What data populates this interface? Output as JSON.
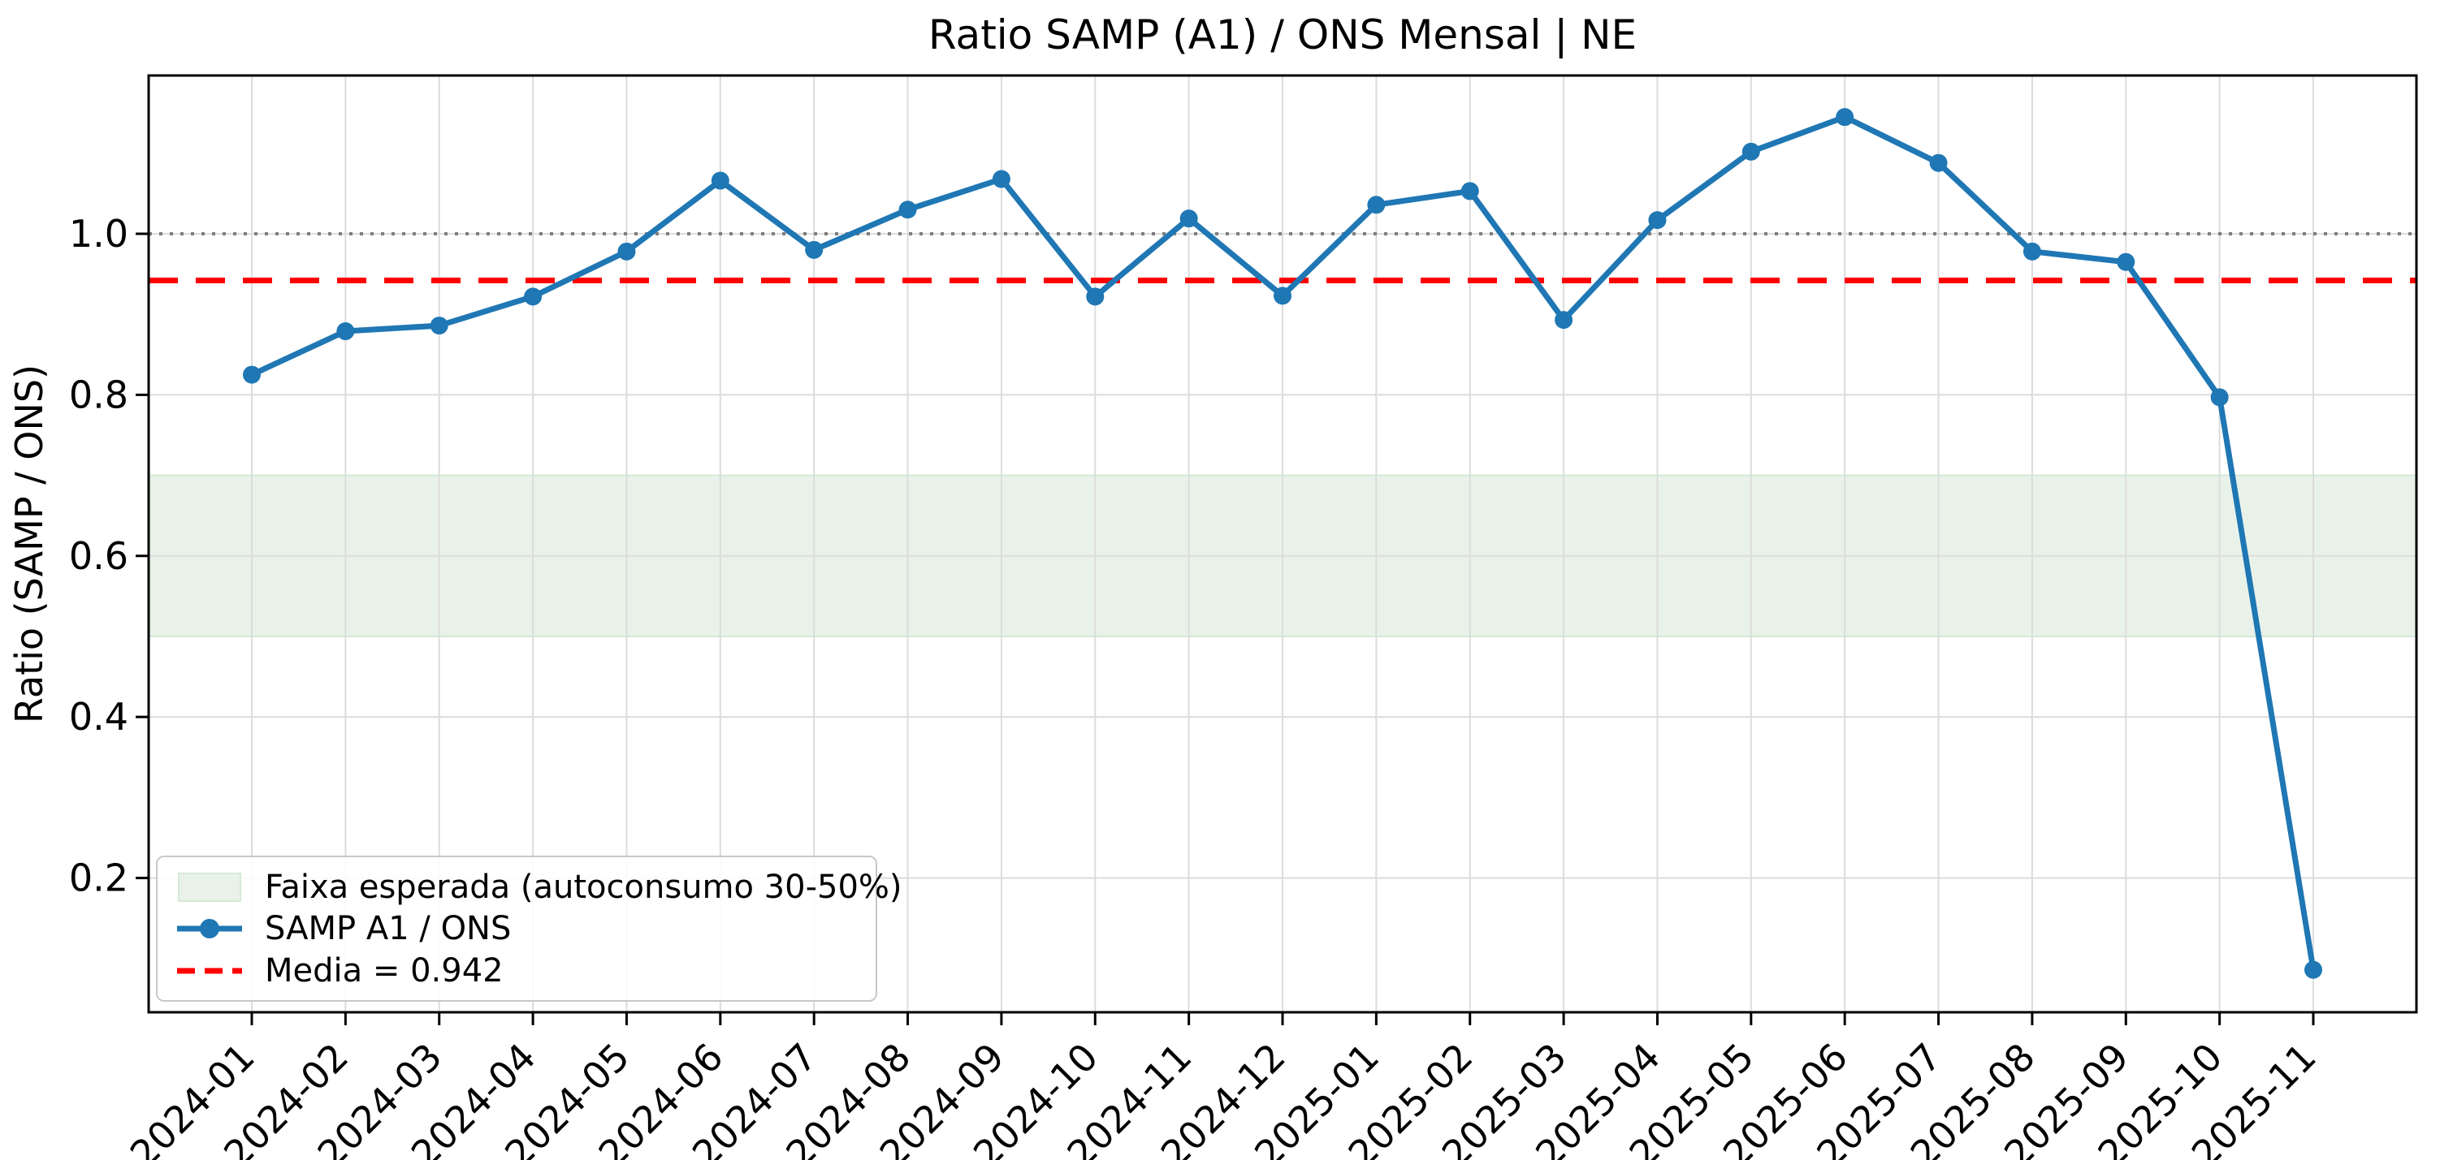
{
  "chart_data": {
    "type": "line",
    "title": "Ratio SAMP (A1) / ONS Mensal | NE",
    "xlabel": "",
    "ylabel": "Ratio (SAMP / ONS)",
    "categories": [
      "2024-01",
      "2024-02",
      "2024-03",
      "2024-04",
      "2024-05",
      "2024-06",
      "2024-07",
      "2024-08",
      "2024-09",
      "2024-10",
      "2024-11",
      "2024-12",
      "2025-01",
      "2025-02",
      "2025-03",
      "2025-04",
      "2025-05",
      "2025-06",
      "2025-07",
      "2025-08",
      "2025-09",
      "2025-10",
      "2025-11"
    ],
    "series": [
      {
        "name": "SAMP A1 / ONS",
        "values": [
          0.825,
          0.879,
          0.886,
          0.922,
          0.978,
          1.066,
          0.98,
          1.03,
          1.068,
          0.922,
          1.019,
          0.923,
          1.036,
          1.053,
          0.893,
          1.017,
          1.102,
          1.145,
          1.088,
          0.978,
          0.965,
          0.797,
          0.086
        ]
      }
    ],
    "mean_line": {
      "label": "Media = 0.942",
      "value": 0.942
    },
    "expected_band": {
      "label": "Faixa esperada (autoconsumo 30-50%)",
      "from": 0.5,
      "to": 0.7
    },
    "reference_line": {
      "value": 1.0
    },
    "yticks": [
      0.2,
      0.4,
      0.6,
      0.8,
      1.0
    ],
    "ytick_labels": [
      "0.2",
      "0.4",
      "0.6",
      "0.8",
      "1.0"
    ],
    "ylim": [
      0.034,
      1.197
    ],
    "grid": true,
    "legend_position": "lower left",
    "colors": {
      "series": "#1f77b4",
      "mean": "#ff0000",
      "band_fill": "#e9f2e9",
      "band_edge": "#d5e8d5",
      "grid": "#dcdcdc",
      "ref_dotted": "#7f7f7f",
      "axis": "#000000"
    }
  }
}
